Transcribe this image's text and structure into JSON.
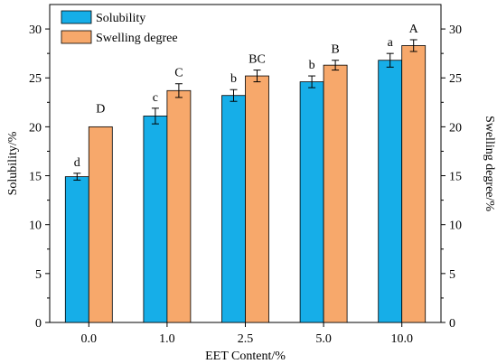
{
  "chart_data": {
    "type": "bar",
    "x_label": "EET Content/%",
    "y_label_left": "Solubility/%",
    "y_label_right": "Swelling degree/%",
    "categories": [
      "0.0",
      "1.0",
      "2.5",
      "5.0",
      "10.0"
    ],
    "ylim": [
      0,
      32.5
    ],
    "y_ticks": [
      0,
      5,
      10,
      15,
      20,
      25,
      30
    ],
    "series": [
      {
        "name": "Solubility",
        "color": "#16aee8",
        "values": [
          14.9,
          21.1,
          23.2,
          24.6,
          26.8
        ],
        "errors": [
          0.35,
          0.8,
          0.6,
          0.6,
          0.7
        ],
        "labels": [
          "d",
          "c",
          "b",
          "b",
          "a"
        ]
      },
      {
        "name": "Swelling degree",
        "color": "#f7a86b",
        "values": [
          20.0,
          23.7,
          25.2,
          26.3,
          28.3
        ],
        "errors": [
          0.0,
          0.7,
          0.6,
          0.5,
          0.6
        ],
        "labels": [
          "D",
          "C",
          "BC",
          "B",
          "A"
        ]
      }
    ],
    "legend_position": "top-left",
    "grid": false
  }
}
